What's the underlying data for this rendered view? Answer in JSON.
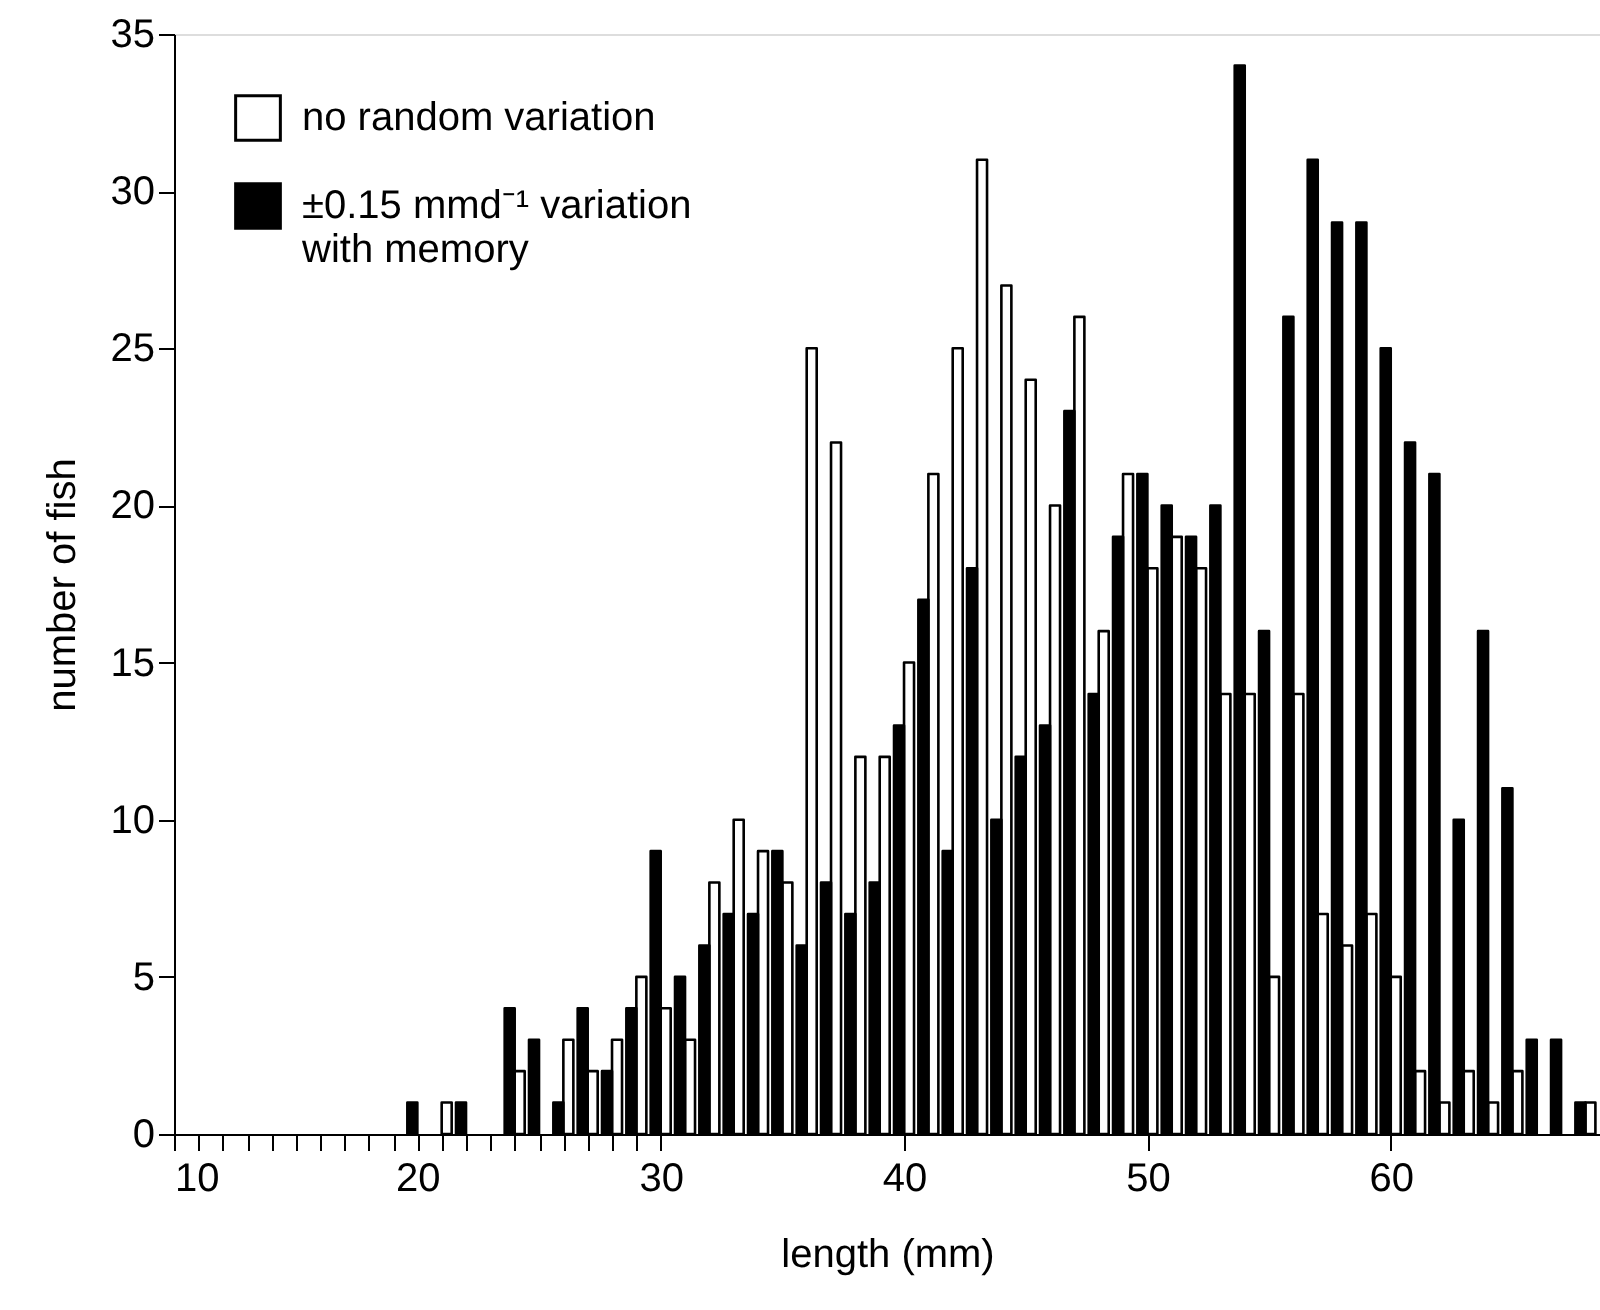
{
  "chart_data": {
    "type": "bar",
    "xlabel": "length (mm)",
    "ylabel": "number of fish",
    "x": [
      20,
      21,
      22,
      23,
      24,
      25,
      26,
      27,
      28,
      29,
      30,
      31,
      32,
      33,
      34,
      35,
      36,
      37,
      38,
      39,
      40,
      41,
      42,
      43,
      44,
      45,
      46,
      47,
      48,
      49,
      50,
      51,
      52,
      53,
      54,
      55,
      56,
      57,
      58,
      59,
      60,
      61,
      62,
      63,
      64,
      65,
      66,
      67,
      68
    ],
    "series": [
      {
        "name": "no random variation",
        "color": "#ffffff",
        "values": [
          null,
          1,
          null,
          null,
          2,
          null,
          3,
          2,
          3,
          5,
          4,
          3,
          8,
          10,
          9,
          8,
          25,
          22,
          12,
          12,
          15,
          21,
          25,
          31,
          27,
          24,
          20,
          26,
          16,
          21,
          18,
          19,
          18,
          14,
          14,
          5,
          14,
          7,
          6,
          7,
          5,
          2,
          1,
          2,
          1,
          2,
          null,
          null,
          1
        ]
      },
      {
        "name": "±0.15 mmd⁻¹ variation\nwith memory",
        "color": "#000000",
        "values": [
          1,
          null,
          1,
          null,
          4,
          3,
          1,
          4,
          2,
          4,
          9,
          5,
          6,
          7,
          7,
          9,
          6,
          8,
          7,
          8,
          13,
          17,
          9,
          18,
          10,
          12,
          13,
          23,
          14,
          19,
          21,
          20,
          19,
          20,
          34,
          16,
          26,
          31,
          29,
          29,
          25,
          22,
          21,
          10,
          16,
          11,
          3,
          3,
          1
        ]
      }
    ],
    "xlim": [
      10,
      68.6
    ],
    "ylim": [
      0,
      35
    ],
    "xticks": [
      10,
      {
        "value": 11,
        "label": null
      },
      {
        "value": 12,
        "label": null
      },
      {
        "value": 13,
        "label": null
      },
      {
        "value": 14,
        "label": null
      },
      {
        "value": 15,
        "label": null
      },
      {
        "value": 16,
        "label": null
      },
      {
        "value": 17,
        "label": null
      },
      {
        "value": 18,
        "label": null
      },
      {
        "value": 19,
        "label": null
      },
      20,
      {
        "value": 21,
        "label": null
      },
      {
        "value": 22,
        "label": null
      },
      {
        "value": 23,
        "label": null
      },
      {
        "value": 24,
        "label": null
      },
      {
        "value": 25,
        "label": null
      },
      {
        "value": 26,
        "label": null
      },
      {
        "value": 27,
        "label": null
      },
      {
        "value": 28,
        "label": null
      },
      {
        "value": 29,
        "label": null
      },
      30,
      40,
      50,
      60
    ],
    "yticks": [
      0,
      5,
      10,
      15,
      20,
      25,
      30,
      35
    ],
    "grid": false,
    "legend": "top left"
  }
}
